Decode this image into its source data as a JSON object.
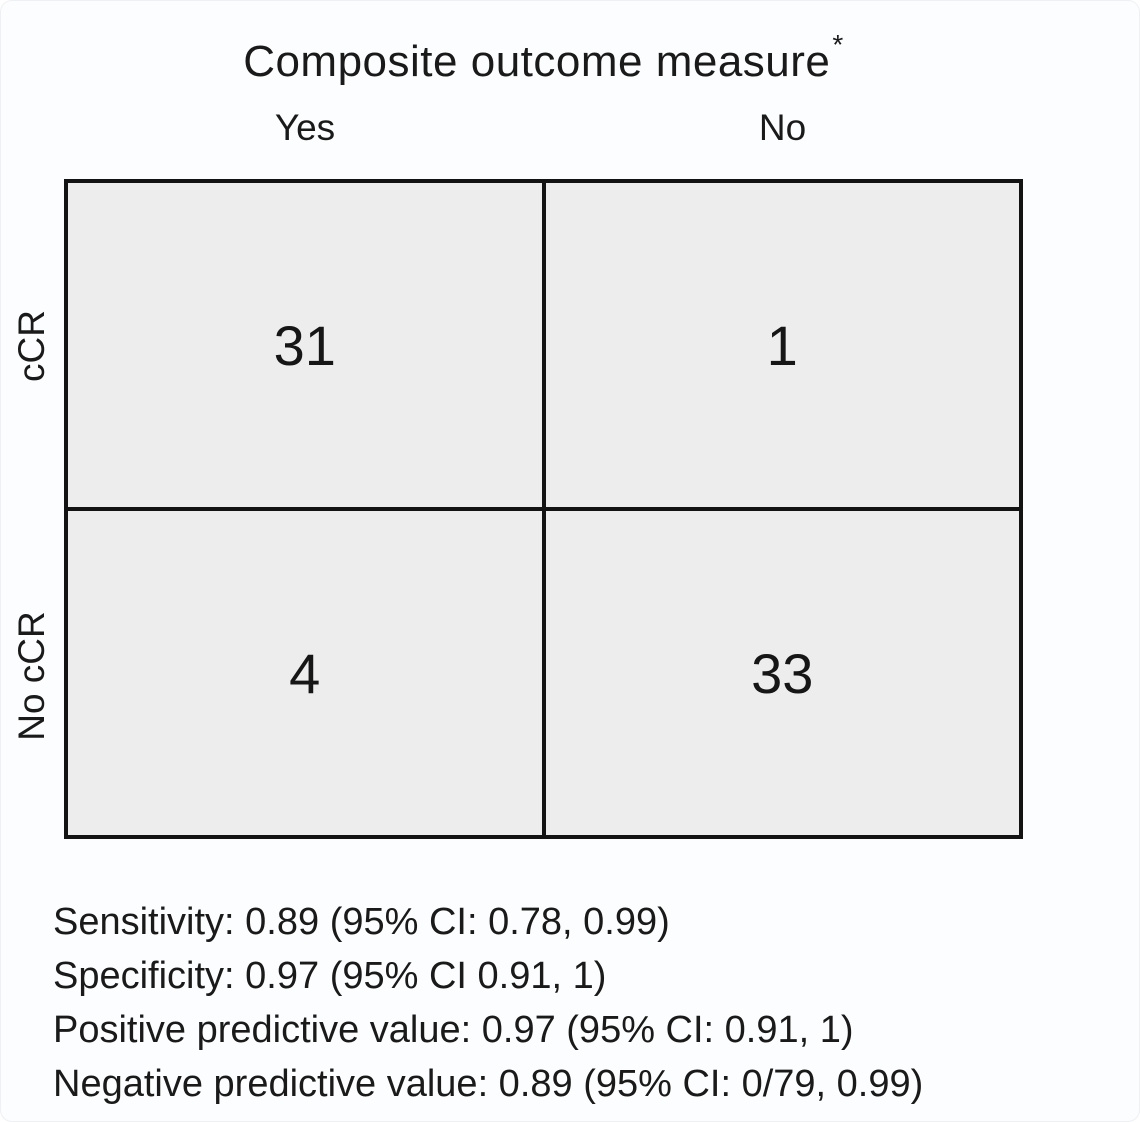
{
  "colors": {
    "background": "#fcfdfe",
    "cell_fill": "#ededee",
    "grid_line": "#131313",
    "text": "#1a1a1a"
  },
  "display": {
    "title_text": "Composite outcome measure",
    "title_superscript": "*"
  },
  "chart_data": {
    "type": "table",
    "title": "Composite outcome measure*",
    "columns": [
      "Yes",
      "No"
    ],
    "rows": [
      "cCR",
      "No cCR"
    ],
    "values": [
      [
        31,
        1
      ],
      [
        4,
        33
      ]
    ],
    "legend_position": "none",
    "grid": true,
    "annotations": [
      "Sensitivity: 0.89 (95% CI: 0.78, 0.99)",
      "Specificity: 0.97 (95% CI 0.91, 1)",
      "Positive predictive value: 0.97 (95% CI: 0.91, 1)",
      "Negative predictive value: 0.89 (95% CI: 0/79, 0.99)"
    ]
  }
}
